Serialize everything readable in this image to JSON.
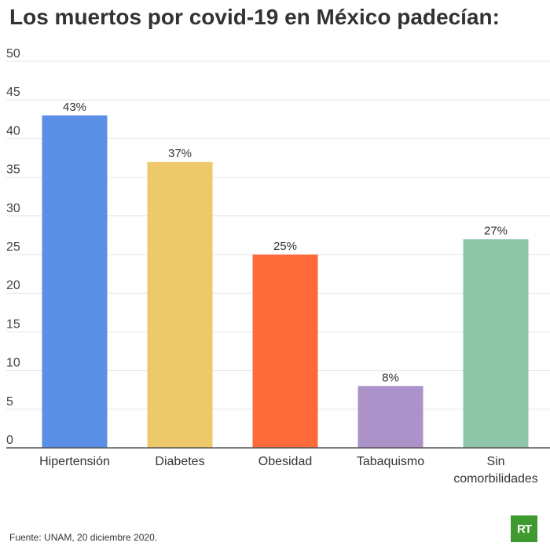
{
  "title": "Los muertos por covid-19 en México padecían:",
  "source": "Fuente: UNAM, 20 diciembre 2020.",
  "logo_text": "RT",
  "chart_data": {
    "type": "bar",
    "title": "Los muertos por covid-19 en México padecían:",
    "categories": [
      [
        "Hipertensión"
      ],
      [
        "Diabetes"
      ],
      [
        "Obesidad"
      ],
      [
        "Tabaquismo"
      ],
      [
        "Sin",
        "comorbilidades"
      ]
    ],
    "values": [
      43,
      37,
      25,
      8,
      27
    ],
    "value_labels": [
      "43%",
      "37%",
      "25%",
      "8%",
      "27%"
    ],
    "colors": [
      "#5b8fe6",
      "#eec96b",
      "#ff6a3a",
      "#ab93c9",
      "#8ec4a8"
    ],
    "ylim": [
      0,
      50
    ],
    "yticks": [
      0,
      5,
      10,
      15,
      20,
      25,
      30,
      35,
      40,
      45,
      50
    ],
    "grid": true,
    "xlabel": "",
    "ylabel": ""
  }
}
